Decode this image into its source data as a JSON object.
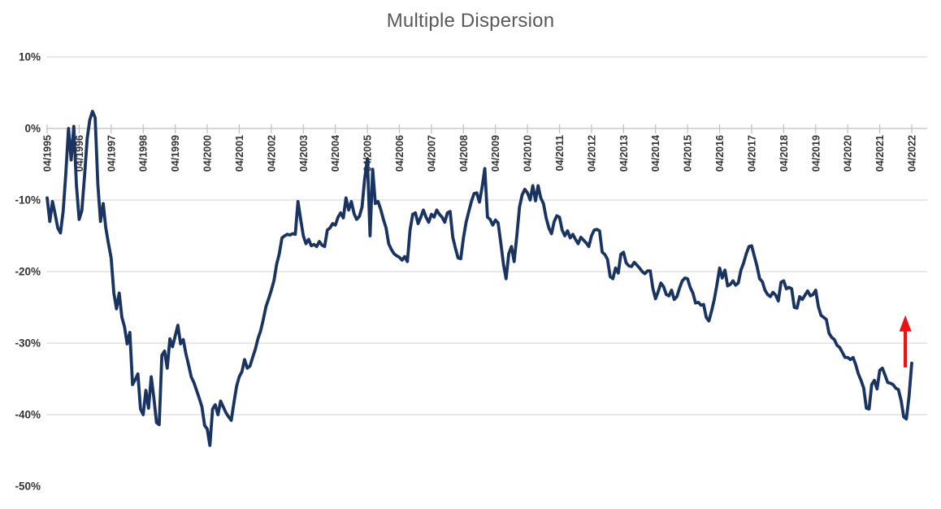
{
  "title": "Multiple Dispersion",
  "colors": {
    "line": "#1a3462",
    "arrow": "#ee1111",
    "gridline": "#d9d9d9",
    "axis": "#bfbfbf",
    "title": "#595959",
    "tick_label": "#333333",
    "background": "#ffffff"
  },
  "chart_data": {
    "type": "line",
    "title": "Multiple Dispersion",
    "series_name": "Multiple Dispersion",
    "frequency": "monthly",
    "x_start": "04/1995",
    "x_end": "04/2022",
    "ylim": [
      -50,
      10
    ],
    "y_unit": "%",
    "grid": "horizontal",
    "legend": "none",
    "y_axis": [
      {
        "label": "10%",
        "pct": 10,
        "gridline": true
      },
      {
        "label": "0%",
        "pct": 0,
        "gridline": true
      },
      {
        "label": "-10%",
        "pct": -10,
        "gridline": true
      },
      {
        "label": "-20%",
        "pct": -20,
        "gridline": true
      },
      {
        "label": "-30%",
        "pct": -30,
        "gridline": true
      },
      {
        "label": "-40%",
        "pct": -40,
        "gridline": true
      },
      {
        "label": "-50%",
        "pct": -50,
        "gridline": false
      }
    ],
    "x_tick_labels": [
      "04/1995",
      "04/1996",
      "04/1997",
      "04/1998",
      "04/1999",
      "04/2000",
      "04/2001",
      "04/2002",
      "04/2003",
      "04/2004",
      "04/2005",
      "04/2006",
      "04/2007",
      "04/2008",
      "04/2009",
      "04/2010",
      "04/2011",
      "04/2012",
      "04/2013",
      "04/2014",
      "04/2015",
      "04/2016",
      "04/2017",
      "04/2018",
      "04/2019",
      "04/2020",
      "04/2021",
      "04/2022"
    ],
    "x_ticks_every_n_points": 12,
    "values_pct": [
      -9.7,
      -13.0,
      -10.2,
      -12.0,
      -13.9,
      -14.6,
      -11.6,
      -6.3,
      0.0,
      -4.4,
      0.3,
      -8.0,
      -12.7,
      -11.5,
      -6.7,
      -1.4,
      1.2,
      2.4,
      1.5,
      -7.8,
      -13.0,
      -10.5,
      -13.9,
      -16.1,
      -18.1,
      -23.0,
      -25.2,
      -23.0,
      -26.4,
      -27.7,
      -30.1,
      -28.5,
      -35.8,
      -35.1,
      -34.3,
      -39.2,
      -40.0,
      -36.6,
      -39.1,
      -34.7,
      -37.7,
      -41.1,
      -41.4,
      -31.7,
      -31.1,
      -33.5,
      -29.4,
      -30.5,
      -29.0,
      -27.5,
      -30.1,
      -29.5,
      -31.5,
      -33.0,
      -34.7,
      -35.5,
      -36.6,
      -37.7,
      -38.9,
      -41.5,
      -42.0,
      -44.3,
      -39.2,
      -38.6,
      -40.0,
      -38.1,
      -38.9,
      -39.7,
      -40.3,
      -40.8,
      -38.3,
      -36.0,
      -34.7,
      -34.0,
      -32.3,
      -33.5,
      -33.2,
      -32.0,
      -30.9,
      -29.4,
      -28.3,
      -26.7,
      -24.9,
      -23.8,
      -22.6,
      -21.3,
      -19.0,
      -17.5,
      -15.3,
      -15.0,
      -14.8,
      -14.9,
      -14.7,
      -14.8,
      -10.2,
      -12.7,
      -15.0,
      -16.1,
      -15.5,
      -16.4,
      -16.2,
      -16.5,
      -15.8,
      -16.3,
      -16.5,
      -14.2,
      -13.9,
      -13.3,
      -13.5,
      -12.4,
      -11.8,
      -12.5,
      -9.7,
      -11.4,
      -10.2,
      -11.9,
      -12.7,
      -12.3,
      -11.0,
      -7.0,
      -4.2,
      -15.0,
      -5.7,
      -10.5,
      -10.2,
      -11.3,
      -12.7,
      -13.9,
      -16.1,
      -16.9,
      -17.5,
      -17.8,
      -18.0,
      -18.4,
      -17.9,
      -18.6,
      -14.2,
      -12.0,
      -11.8,
      -13.3,
      -12.4,
      -11.4,
      -12.4,
      -13.1,
      -12.0,
      -12.4,
      -11.4,
      -12.0,
      -12.4,
      -13.1,
      -11.8,
      -11.6,
      -15.2,
      -16.7,
      -18.1,
      -18.2,
      -15.3,
      -13.1,
      -11.6,
      -10.2,
      -9.1,
      -9.0,
      -10.3,
      -8.2,
      -5.6,
      -12.4,
      -12.7,
      -13.5,
      -12.8,
      -13.2,
      -16.0,
      -19.0,
      -21.0,
      -17.5,
      -16.5,
      -18.6,
      -15.0,
      -11.0,
      -9.3,
      -8.5,
      -9.0,
      -10.0,
      -8.0,
      -10.1,
      -8.0,
      -9.7,
      -10.5,
      -12.5,
      -13.9,
      -14.7,
      -13.0,
      -12.2,
      -12.4,
      -14.2,
      -15.0,
      -14.3,
      -15.3,
      -14.8,
      -15.5,
      -16.1,
      -15.2,
      -15.6,
      -16.0,
      -16.5,
      -15.0,
      -14.2,
      -14.1,
      -14.3,
      -17.3,
      -17.6,
      -18.3,
      -20.7,
      -21.0,
      -19.5,
      -20.2,
      -17.6,
      -17.3,
      -18.8,
      -19.2,
      -19.3,
      -18.7,
      -19.1,
      -19.5,
      -20.0,
      -20.3,
      -19.9,
      -19.9,
      -22.4,
      -23.8,
      -22.8,
      -21.6,
      -22.1,
      -23.2,
      -23.4,
      -22.6,
      -23.9,
      -23.5,
      -22.3,
      -21.3,
      -20.9,
      -21.0,
      -22.2,
      -23.0,
      -24.4,
      -24.3,
      -24.7,
      -24.6,
      -26.4,
      -26.9,
      -25.5,
      -23.9,
      -21.8,
      -19.5,
      -20.9,
      -19.8,
      -22.0,
      -21.8,
      -21.3,
      -21.9,
      -21.6,
      -19.8,
      -18.8,
      -17.5,
      -16.5,
      -16.4,
      -17.8,
      -19.2,
      -21.0,
      -21.4,
      -22.6,
      -23.2,
      -23.5,
      -22.9,
      -23.3,
      -24.1,
      -21.5,
      -21.3,
      -22.4,
      -22.2,
      -22.4,
      -25.0,
      -25.1,
      -23.5,
      -23.9,
      -23.3,
      -22.7,
      -23.4,
      -23.2,
      -22.6,
      -24.9,
      -26.1,
      -26.4,
      -26.7,
      -28.6,
      -29.2,
      -29.5,
      -30.3,
      -30.6,
      -31.3,
      -32.0,
      -32.0,
      -32.3,
      -32.0,
      -33.0,
      -34.3,
      -35.2,
      -36.3,
      -39.1,
      -39.2,
      -35.8,
      -35.2,
      -36.4,
      -33.8,
      -33.5,
      -34.5,
      -35.5,
      -35.6,
      -35.8,
      -36.3,
      -36.5,
      -38.0,
      -40.3,
      -40.6,
      -37.4,
      -32.8
    ],
    "annotations": [
      {
        "type": "up-arrow",
        "description": "red arrow pointing up near 04/2022",
        "x_index": 321.6,
        "from_pct": -33.4,
        "to_pct": -26.1
      }
    ]
  }
}
